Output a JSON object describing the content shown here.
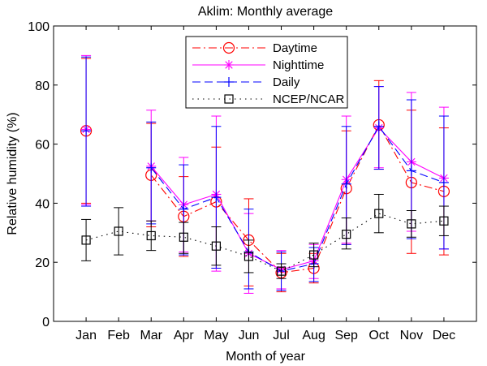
{
  "chart_data": {
    "type": "line",
    "title": "Aklim: Monthly average",
    "xlabel": "Month of year",
    "ylabel": "Relative humidity (%)",
    "ylim": [
      0,
      100
    ],
    "yticks": [
      0,
      20,
      40,
      60,
      80,
      100
    ],
    "categories": [
      "Jan",
      "Feb",
      "Mar",
      "Apr",
      "May",
      "Jun",
      "Jul",
      "Aug",
      "Sep",
      "Oct",
      "Nov",
      "Dec"
    ],
    "grid": false,
    "legend_position": "top-center",
    "series": [
      {
        "name": "Daytime",
        "color": "#ff0000",
        "line_style": "dashdot",
        "marker": "circle",
        "values": [
          64.5,
          null,
          49.5,
          35.5,
          40.5,
          27.5,
          16.5,
          18,
          45,
          66.5,
          47,
          44
        ],
        "err_low": [
          40,
          null,
          32,
          22,
          18,
          12,
          10,
          13,
          26,
          51.5,
          23,
          22.5
        ],
        "err_high": [
          89,
          null,
          67,
          49,
          59,
          41.5,
          23,
          23,
          64.5,
          81.5,
          71.5,
          65.5
        ]
      },
      {
        "name": "Nighttime",
        "color": "#ff00ff",
        "line_style": "solid",
        "marker": "asterisk",
        "values": [
          65,
          null,
          52.5,
          39.5,
          43,
          23,
          17.5,
          20.5,
          48,
          65.5,
          54,
          48.5
        ],
        "err_low": [
          39.5,
          null,
          34,
          23.5,
          17,
          9.5,
          11,
          14.5,
          26.5,
          52,
          30.5,
          24.5
        ],
        "err_high": [
          90,
          null,
          71.5,
          55.5,
          69.5,
          36.5,
          24,
          26,
          69.5,
          79.5,
          77.5,
          72.5
        ]
      },
      {
        "name": "Daily",
        "color": "#0000ff",
        "line_style": "dashed",
        "marker": "plus",
        "values": [
          64.5,
          null,
          52,
          38,
          42,
          23.5,
          17,
          19.5,
          46.5,
          66,
          51,
          47
        ],
        "err_low": [
          39,
          null,
          33,
          22.5,
          18,
          11,
          10.5,
          13.5,
          26,
          51.5,
          28,
          24.5
        ],
        "err_high": [
          89.5,
          null,
          67.5,
          53,
          66,
          38,
          23.5,
          25,
          66,
          79.5,
          75,
          69.5
        ]
      },
      {
        "name": "NCEP/NCAR",
        "color": "#000000",
        "line_style": "dotted",
        "marker": "square",
        "values": [
          27.5,
          30.5,
          29,
          28.5,
          25.5,
          22,
          17,
          22.5,
          29.5,
          36.5,
          33,
          34
        ],
        "err_low": [
          20.5,
          22.5,
          24,
          23,
          19,
          16.5,
          14.5,
          18.5,
          24.5,
          30,
          28.5,
          29
        ],
        "err_high": [
          34.5,
          38.5,
          34,
          33.5,
          32,
          27.5,
          19.5,
          26.5,
          35,
          43,
          37.5,
          39
        ]
      }
    ]
  }
}
